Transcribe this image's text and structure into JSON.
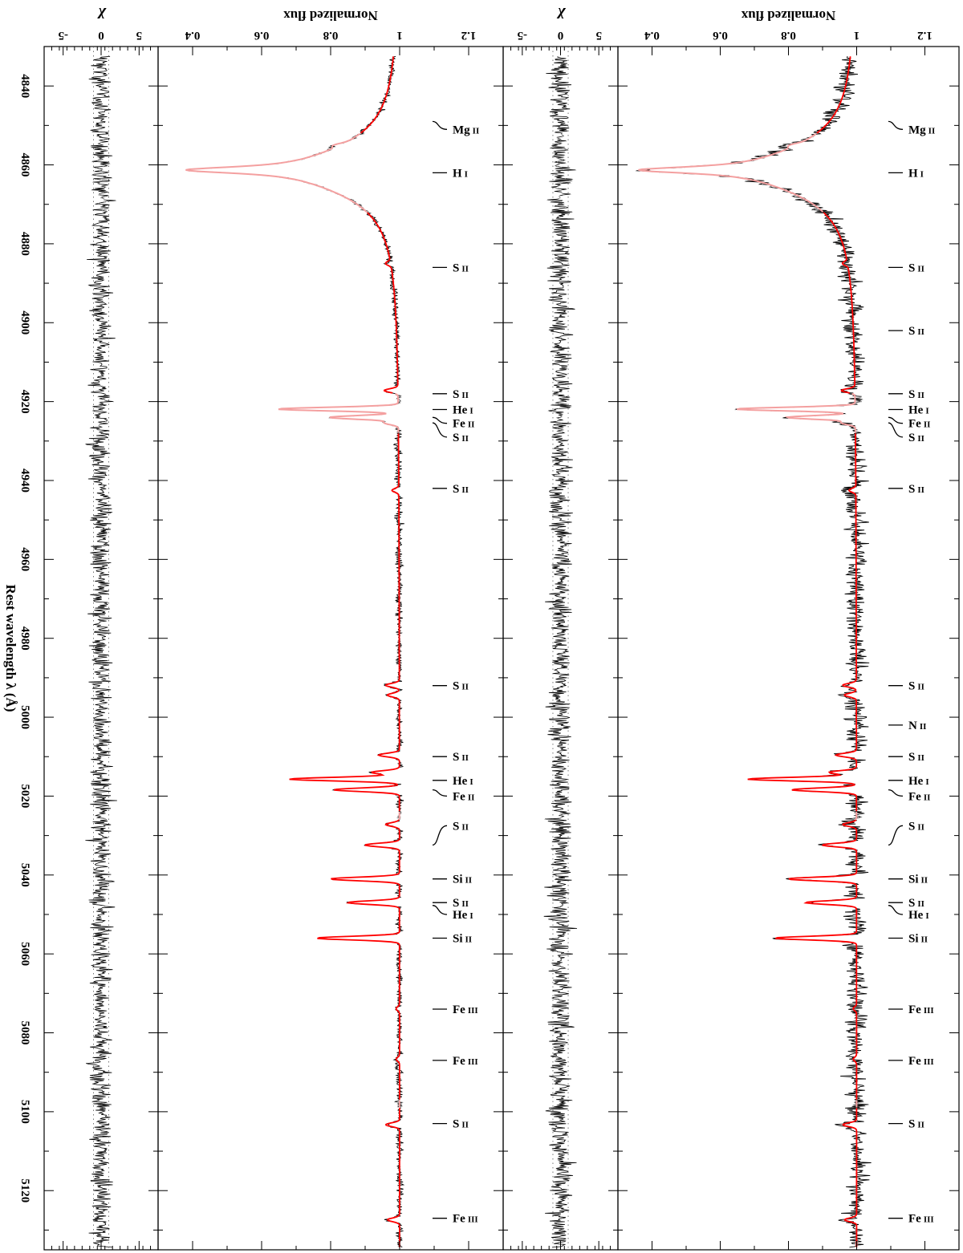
{
  "chart_data": {
    "type": "line",
    "orientation": "rotated-90",
    "x_axis": {
      "label": "Rest wavelength λ (Å)",
      "range": [
        4830,
        5135
      ],
      "ticks": [
        4840,
        4860,
        4880,
        4900,
        4920,
        4940,
        4960,
        4980,
        5000,
        5020,
        5040,
        5060,
        5080,
        5100,
        5120
      ],
      "tick_labels": [
        "4840",
        "4860",
        "4880",
        "4900",
        "4920",
        "4940",
        "4960",
        "4980",
        "5000",
        "5020",
        "5040",
        "5060",
        "5080",
        "5100",
        "5120"
      ]
    },
    "flux_axis": {
      "label": "Normalized flux",
      "range": [
        0.3,
        1.3
      ],
      "ticks": [
        0.4,
        0.6,
        0.8,
        1.0,
        1.2
      ],
      "tick_labels": [
        "0.4",
        "0.6",
        "0.8",
        "1",
        "1.2"
      ]
    },
    "chi_axis": {
      "label": "χ",
      "range": [
        -7.5,
        7.5
      ],
      "ticks": [
        -5,
        0,
        5
      ],
      "tick_labels": [
        "-5",
        "0",
        "5"
      ],
      "dotted_levels": [
        -1,
        1
      ]
    },
    "series_colors": {
      "observed": "#000000",
      "model_fit": "#ff0000",
      "model_excluded": "#f4a0a0",
      "excluded_data": "#c0c0c0",
      "residual": "#000000"
    },
    "continuum": 1.0,
    "hbeta_profile": {
      "center": 4861.3,
      "depth_left_panel": 0.62,
      "depth_right_panel": 0.64,
      "wing_width": 7.5
    },
    "metal_lines_model": [
      {
        "wavelength": 4855.0,
        "depth": 0.02
      },
      {
        "wavelength": 4885.0,
        "depth": 0.015
      },
      {
        "wavelength": 4917.2,
        "depth": 0.04
      },
      {
        "wavelength": 4921.9,
        "depth": 0.35
      },
      {
        "wavelength": 4924.0,
        "depth": 0.2
      },
      {
        "wavelength": 4925.4,
        "depth": 0.04
      },
      {
        "wavelength": 4942.5,
        "depth": 0.02
      },
      {
        "wavelength": 4991.9,
        "depth": 0.04
      },
      {
        "wavelength": 4994.4,
        "depth": 0.035
      },
      {
        "wavelength": 5009.6,
        "depth": 0.06
      },
      {
        "wavelength": 5014.0,
        "depth": 0.08
      },
      {
        "wavelength": 5015.7,
        "depth": 0.32
      },
      {
        "wavelength": 5018.4,
        "depth": 0.19
      },
      {
        "wavelength": 5027.2,
        "depth": 0.04
      },
      {
        "wavelength": 5032.4,
        "depth": 0.1
      },
      {
        "wavelength": 5041.0,
        "depth": 0.2
      },
      {
        "wavelength": 5047.0,
        "depth": 0.15
      },
      {
        "wavelength": 5056.0,
        "depth": 0.24
      },
      {
        "wavelength": 5073.9,
        "depth": 0.01
      },
      {
        "wavelength": 5086.7,
        "depth": 0.01
      },
      {
        "wavelength": 5103.3,
        "depth": 0.04
      },
      {
        "wavelength": 5127.4,
        "depth": 0.035
      }
    ],
    "line_ids": [
      {
        "wavelength": 4849.0,
        "label_y": 4851,
        "element": "Mg",
        "ion": "II"
      },
      {
        "wavelength": 4861.3,
        "label_y": 4862,
        "element": "H",
        "ion": "I"
      },
      {
        "wavelength": 4885.5,
        "label_y": 4886,
        "element": "S",
        "ion": "II"
      },
      {
        "wavelength": 4917.2,
        "label_y": 4918,
        "element": "S",
        "ion": "II"
      },
      {
        "wavelength": 4921.9,
        "label_y": 4922,
        "element": "He",
        "ion": "I"
      },
      {
        "wavelength": 4924.0,
        "label_y": 4925.5,
        "element": "Fe",
        "ion": "II"
      },
      {
        "wavelength": 4925.4,
        "label_y": 4929,
        "element": "S",
        "ion": "II"
      },
      {
        "wavelength": 4942.5,
        "label_y": 4942,
        "element": "S",
        "ion": "II"
      },
      {
        "wavelength": 4991.9,
        "label_y": 4992,
        "element": "S",
        "ion": "II"
      },
      {
        "wavelength": 5009.6,
        "label_y": 5010,
        "element": "S",
        "ion": "II"
      },
      {
        "wavelength": 5015.7,
        "label_y": 5016,
        "element": "He",
        "ion": "I"
      },
      {
        "wavelength": 5018.4,
        "label_y": 5020,
        "element": "Fe",
        "ion": "II"
      },
      {
        "wavelength": 5032.4,
        "label_y": 5027.5,
        "element": "S",
        "ion": "II"
      },
      {
        "wavelength": 5041.0,
        "label_y": 5041,
        "element": "Si",
        "ion": "II"
      },
      {
        "wavelength": 5047.0,
        "label_y": 5047,
        "element": "S",
        "ion": "II"
      },
      {
        "wavelength": 5047.7,
        "label_y": 5050,
        "element": "He",
        "ion": "I"
      },
      {
        "wavelength": 5056.0,
        "label_y": 5056,
        "element": "Si",
        "ion": "II"
      },
      {
        "wavelength": 5073.9,
        "label_y": 5074,
        "element": "Fe",
        "ion": "III"
      },
      {
        "wavelength": 5086.7,
        "label_y": 5087,
        "element": "Fe",
        "ion": "III"
      },
      {
        "wavelength": 5103.3,
        "label_y": 5103,
        "element": "S",
        "ion": "II"
      },
      {
        "wavelength": 5127.4,
        "label_y": 5127,
        "element": "Fe",
        "ion": "III"
      }
    ],
    "right_only_line_ids": [
      {
        "wavelength": 4902.0,
        "label_y": 4902,
        "element": "S",
        "ion": "II"
      },
      {
        "wavelength": 5001.5,
        "label_y": 5002,
        "element": "N",
        "ion": "II"
      }
    ],
    "noise_sigma": {
      "left_panel": 0.005,
      "right_panel": 0.015
    },
    "excluded_regions": [
      [
        4852,
        4872
      ],
      [
        4918,
        4928
      ],
      [
        5024,
        5026
      ],
      [
        5097,
        5099
      ]
    ]
  }
}
